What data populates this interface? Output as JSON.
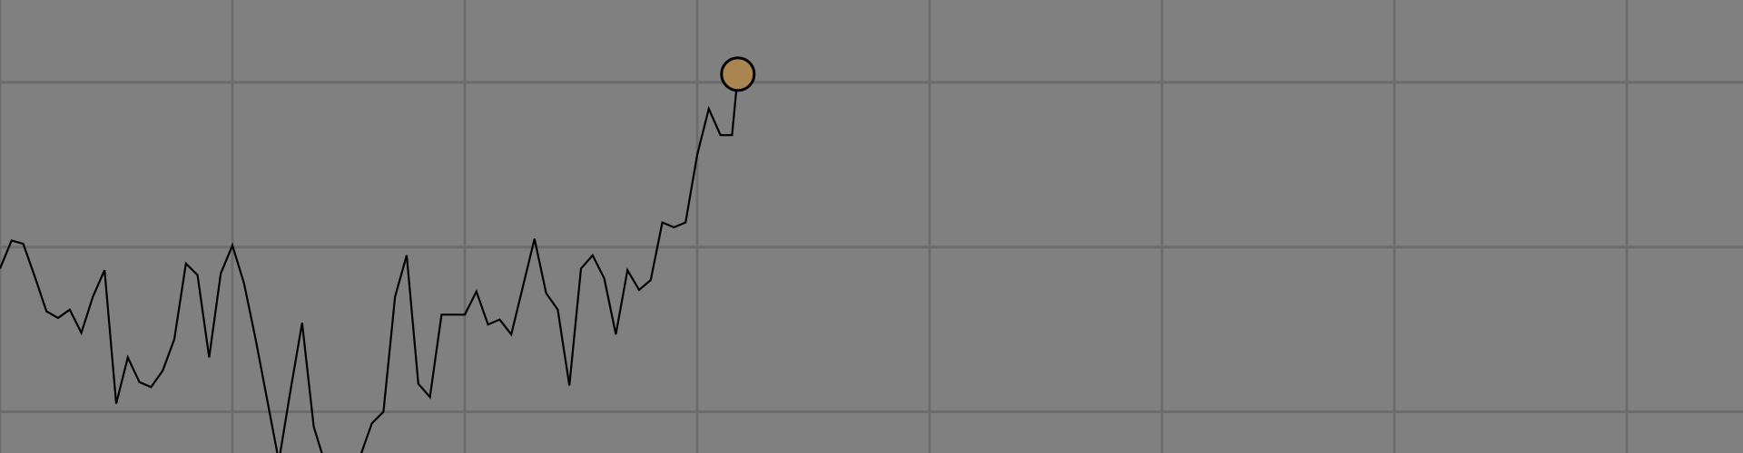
{
  "chart_data": {
    "type": "line",
    "title": "",
    "xlabel": "",
    "ylabel": "",
    "grid": true,
    "legend": "none",
    "x_range": [
      0,
      15
    ],
    "y_range": [
      0.0,
      2.75
    ],
    "x_ticks": [
      0,
      2,
      4,
      6,
      8,
      10,
      12,
      14
    ],
    "y_ticks": [
      0.25,
      1.25,
      2.25
    ],
    "series": [
      {
        "x": [
          0.0,
          0.1,
          0.2,
          0.3,
          0.4,
          0.5,
          0.6,
          0.7,
          0.8,
          0.9,
          1.0,
          1.1,
          1.2,
          1.3,
          1.4,
          1.5,
          1.6,
          1.7,
          1.8,
          1.9,
          2.0,
          2.1,
          2.2,
          2.3,
          2.4,
          2.5,
          2.6,
          2.7,
          2.8,
          2.9,
          3.0,
          3.1,
          3.2,
          3.3,
          3.4,
          3.5,
          3.6,
          3.7,
          3.8,
          3.9,
          4.0,
          4.1,
          4.2,
          4.3,
          4.4,
          4.5,
          4.6,
          4.7,
          4.8,
          4.9,
          5.0,
          5.1,
          5.2,
          5.3,
          5.4,
          5.5,
          5.6,
          5.7,
          5.8,
          5.9,
          6.0,
          6.1,
          6.2,
          6.3
        ],
        "y": [
          1.12,
          1.29,
          1.27,
          1.07,
          0.86,
          0.82,
          0.87,
          0.73,
          0.95,
          1.11,
          0.3,
          0.58,
          0.43,
          0.4,
          0.5,
          0.69,
          1.15,
          1.08,
          0.58,
          1.09,
          1.26,
          1.03,
          0.69,
          0.32,
          -0.05,
          0.38,
          0.79,
          0.16,
          -0.07,
          -0.06,
          -0.07,
          -0.02,
          0.18,
          0.25,
          0.95,
          1.2,
          0.42,
          0.34,
          0.84,
          0.84,
          0.84,
          0.98,
          0.78,
          0.81,
          0.72,
          1.01,
          1.3,
          0.97,
          0.87,
          0.41,
          1.12,
          1.2,
          1.06,
          0.72,
          1.11,
          0.99,
          1.05,
          1.4,
          1.37,
          1.4,
          1.81,
          2.09,
          1.93,
          1.93
        ]
      }
    ],
    "endpoint": {
      "x": 6.35,
      "y": 2.3
    }
  },
  "colors": {
    "background": "#808080",
    "grid": "#6c6c6c",
    "line": "#000000",
    "marker_fill": "#a98551",
    "marker_stroke": "#000000"
  }
}
